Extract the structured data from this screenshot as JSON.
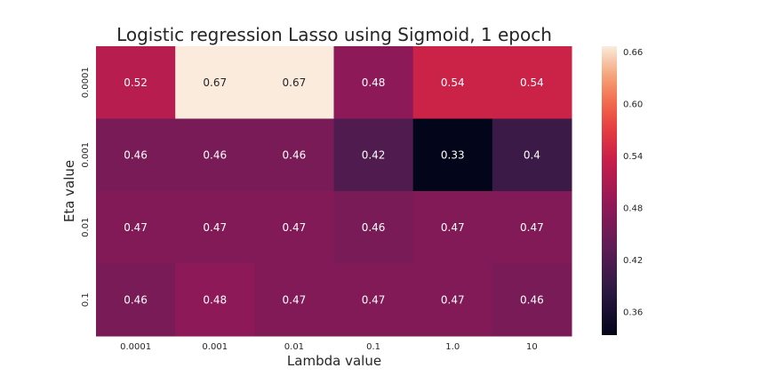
{
  "chart_data": {
    "type": "heatmap",
    "title": "Logistic regression Lasso using Sigmoid, 1 epoch",
    "xlabel": "Lambda value",
    "ylabel": "Eta value",
    "x_categories": [
      "0.0001",
      "0.001",
      "0.01",
      "0.1",
      "1.0",
      "10"
    ],
    "y_categories": [
      "0.0001",
      "0.001",
      "0.01",
      "0.1"
    ],
    "values": [
      [
        0.52,
        0.67,
        0.67,
        0.48,
        0.54,
        0.54
      ],
      [
        0.46,
        0.46,
        0.46,
        0.42,
        0.33,
        0.4
      ],
      [
        0.47,
        0.47,
        0.47,
        0.46,
        0.47,
        0.47
      ],
      [
        0.46,
        0.48,
        0.47,
        0.47,
        0.47,
        0.46
      ]
    ],
    "cell_labels": [
      [
        "0.52",
        "0.67",
        "0.67",
        "0.48",
        "0.54",
        "0.54"
      ],
      [
        "0.46",
        "0.46",
        "0.46",
        "0.42",
        "0.33",
        "0.4"
      ],
      [
        "0.47",
        "0.47",
        "0.47",
        "0.46",
        "0.47",
        "0.47"
      ],
      [
        "0.46",
        "0.48",
        "0.47",
        "0.47",
        "0.47",
        "0.46"
      ]
    ],
    "colorbar": {
      "range": [
        0.3333,
        0.6667
      ],
      "ticks": [
        "0.36",
        "0.42",
        "0.48",
        "0.54",
        "0.60",
        "0.66"
      ]
    },
    "colormap": "rocket",
    "grid": false
  }
}
